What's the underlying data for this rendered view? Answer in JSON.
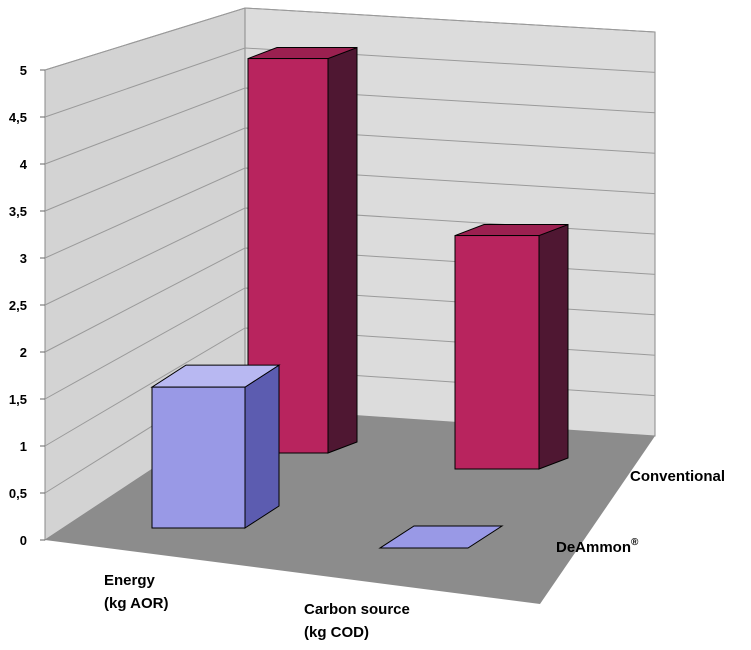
{
  "chart_data": {
    "type": "bar",
    "style": "3d-clustered-depth",
    "categories_line1": [
      "Energy",
      "Carbon source"
    ],
    "categories_line2": [
      "(kg AOR)",
      "(kg COD)"
    ],
    "yticks": [
      "0",
      "0,5",
      "1",
      "1,5",
      "2",
      "2,5",
      "3",
      "3,5",
      "4",
      "4,5",
      "5"
    ],
    "ylim": [
      0,
      5
    ],
    "series": [
      {
        "name": "DeAmmon",
        "name_sup": "®",
        "values": [
          1.75,
          0.0
        ],
        "color_front": "#9999e6",
        "color_side": "#5c5cb0",
        "color_top": "#b8b8f2"
      },
      {
        "name": "Conventional",
        "name_sup": "",
        "values": [
          4.9,
          2.9
        ],
        "color_front": "#b8245e",
        "color_side": "#4f1732",
        "color_top": "#9b2050"
      }
    ],
    "wall_color": "#d3d3d3",
    "floor_color": "#8c8c8c",
    "grid": true
  }
}
